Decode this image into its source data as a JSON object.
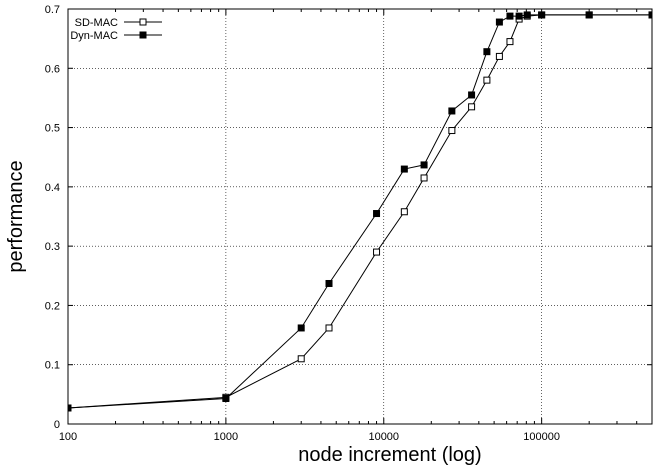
{
  "chart_data": {
    "type": "line",
    "title": "",
    "xlabel": "node increment (log)",
    "ylabel": "performance",
    "xscale": "log",
    "xlim": [
      100,
      500000
    ],
    "ylim": [
      0,
      0.7
    ],
    "x_ticks": [
      100,
      1000,
      10000,
      100000
    ],
    "x_tick_labels": [
      "100",
      "1000",
      "10000",
      "100000"
    ],
    "y_ticks": [
      0,
      0.1,
      0.2,
      0.3,
      0.4,
      0.5,
      0.6,
      0.7
    ],
    "y_tick_labels": [
      "0",
      "0.1",
      "0.2",
      "0.3",
      "0.4",
      "0.5",
      "0.6",
      "0.7"
    ],
    "grid": true,
    "legend_position": "top-left",
    "series": [
      {
        "name": "SD-MAC",
        "marker": "open-square",
        "color": "#000000",
        "x": [
          100,
          1000,
          3000,
          4500,
          9000,
          13500,
          18000,
          27000,
          36000,
          45000,
          54000,
          63000,
          72000,
          81000,
          100000,
          200000,
          500000
        ],
        "y": [
          0.027,
          0.045,
          0.11,
          0.162,
          0.29,
          0.358,
          0.415,
          0.495,
          0.535,
          0.58,
          0.62,
          0.645,
          0.683,
          0.688,
          0.69,
          0.69,
          0.69
        ]
      },
      {
        "name": "Dyn-MAC",
        "marker": "filled-square",
        "color": "#000000",
        "x": [
          100,
          1000,
          3000,
          4500,
          9000,
          13500,
          18000,
          27000,
          36000,
          45000,
          54000,
          63000,
          72000,
          81000,
          100000,
          200000,
          500000
        ],
        "y": [
          0.027,
          0.043,
          0.162,
          0.237,
          0.355,
          0.43,
          0.437,
          0.528,
          0.555,
          0.628,
          0.678,
          0.688,
          0.688,
          0.69,
          0.69,
          0.69,
          0.69
        ]
      }
    ]
  }
}
